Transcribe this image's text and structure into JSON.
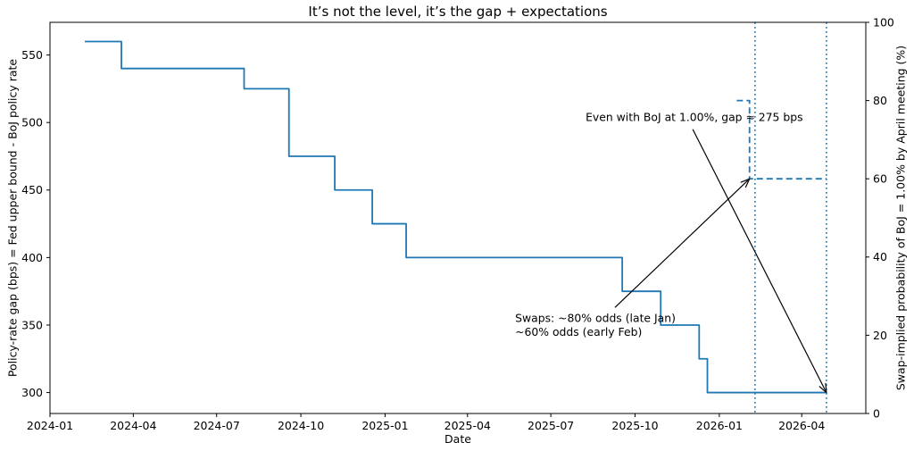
{
  "chart_data": {
    "type": "line",
    "title": "It’s not the level, it’s the gap + expectations",
    "xlabel": "Date",
    "ylabel_left": "Policy-rate gap (bps) = Fed upper bound - BoJ policy rate",
    "ylabel_right": "Swap-implied probability of BoJ = 1.00% by April meeting (%)",
    "grid": false,
    "legend": "none",
    "xlim": [
      "2024-01-01",
      "2026-06-10"
    ],
    "ylim_left": [
      284.5,
      574.2
    ],
    "ylim_right": [
      0,
      100
    ],
    "x_ticks": [
      "2024-01",
      "2024-04",
      "2024-07",
      "2024-10",
      "2025-01",
      "2025-04",
      "2025-07",
      "2025-10",
      "2026-01",
      "2026-04"
    ],
    "y_left_ticks": [
      300,
      350,
      400,
      450,
      500,
      550
    ],
    "y_right_ticks": [
      0,
      20,
      40,
      60,
      80,
      100
    ],
    "series": [
      {
        "name": "policy-rate-gap-bps",
        "axis": "left",
        "line_style": "solid",
        "draw_style": "steps-post",
        "color": "#1f77b4",
        "points": [
          [
            "2024-02-08",
            560
          ],
          [
            "2024-03-19",
            540
          ],
          [
            "2024-07-31",
            525
          ],
          [
            "2024-09-18",
            475
          ],
          [
            "2024-11-07",
            450
          ],
          [
            "2024-12-18",
            425
          ],
          [
            "2025-01-24",
            400
          ],
          [
            "2025-09-17",
            375
          ],
          [
            "2025-10-29",
            350
          ],
          [
            "2025-12-10",
            325
          ],
          [
            "2025-12-19",
            300
          ],
          [
            "2026-04-28",
            300
          ]
        ]
      },
      {
        "name": "swap-implied-probability-boj-1.00",
        "axis": "right",
        "line_style": "dashed",
        "draw_style": "steps-post",
        "color": "#1f77b4",
        "points": [
          [
            "2026-01-20",
            80
          ],
          [
            "2026-02-03",
            60
          ],
          [
            "2026-04-28",
            60
          ]
        ]
      }
    ],
    "vlines": [
      {
        "date": "2026-02-09",
        "style": "dotted",
        "color": "#1f77b4"
      },
      {
        "date": "2026-04-28",
        "style": "dotted",
        "color": "#1f77b4"
      }
    ],
    "annotations": [
      {
        "lines": [
          "Even with BoJ at 1.00%, gap ≈ 275 bps"
        ],
        "text_at": {
          "date": "2025-08-08",
          "value": 504
        },
        "arrow_from": {
          "date": "2025-12-03",
          "value": 495
        },
        "arrow_to": {
          "date": "2026-04-28",
          "value": 300,
          "axis": "left"
        },
        "color": "#000000"
      },
      {
        "lines": [
          "Swaps: ~80% odds (late Jan)",
          "~60% odds (early Feb)"
        ],
        "text_at": {
          "date": "2025-05-23",
          "value": 350
        },
        "arrow_from": {
          "date": "2025-09-09",
          "value": 363
        },
        "arrow_to": {
          "date": "2026-02-03",
          "value": 60,
          "axis": "right"
        },
        "color": "#000000"
      }
    ]
  }
}
